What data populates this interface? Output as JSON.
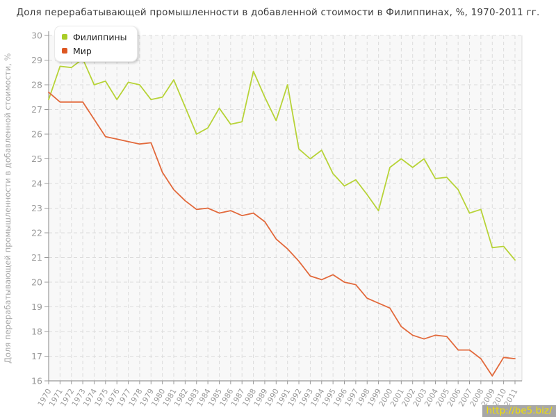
{
  "title": "Доля перерабатывающей промышленности в добавленной стоимости в Филиппинах, %, 1970-2011 гг.",
  "y_axis_title": "Доля перерабатывающей промышленности в добавленной стоимости, %",
  "watermark": "http://be5.biz/",
  "legend": {
    "position": "top-left",
    "items": [
      {
        "label": "Филиппины",
        "color": "#a9cd28"
      },
      {
        "label": "Мир",
        "color": "#dd5722"
      }
    ]
  },
  "colors": {
    "plot_background": "#f8f8f8",
    "grid": "#dcdcdc",
    "axis": "#999999",
    "tick_label": "#9a9a9a",
    "title_text": "#3c3c3c",
    "watermark_bg": "#a7a7a7",
    "watermark_text": "#f2e000"
  },
  "chart_data": {
    "type": "line",
    "title": "Доля перерабатывающей промышленности в добавленной стоимости в Филиппинах, %, 1970-2011 гг.",
    "xlabel": "",
    "ylabel": "Доля перерабатывающей промышленности в добавленной стоимости, %",
    "ylim": [
      16,
      30
    ],
    "yticks": [
      16,
      17,
      18,
      19,
      20,
      21,
      22,
      23,
      24,
      25,
      26,
      27,
      28,
      29,
      30
    ],
    "grid": true,
    "grid_style": "dashed",
    "legend_position": "top-left",
    "x": [
      1970,
      1971,
      1972,
      1973,
      1974,
      1975,
      1976,
      1977,
      1978,
      1979,
      1980,
      1981,
      1982,
      1983,
      1984,
      1985,
      1986,
      1987,
      1988,
      1989,
      1990,
      1991,
      1992,
      1993,
      1994,
      1995,
      1996,
      1997,
      1998,
      1999,
      2000,
      2001,
      2002,
      2003,
      2004,
      2005,
      2006,
      2007,
      2008,
      2009,
      2010,
      2011
    ],
    "series": [
      {
        "name": "Филиппины",
        "color": "#b7d337",
        "values": [
          27.4,
          28.75,
          28.7,
          29.05,
          28.0,
          28.15,
          27.4,
          28.1,
          28.0,
          27.4,
          27.5,
          28.2,
          27.1,
          26.0,
          26.25,
          27.05,
          26.4,
          26.5,
          28.55,
          27.5,
          26.55,
          28.0,
          25.4,
          25.0,
          25.35,
          24.4,
          23.9,
          24.15,
          23.55,
          22.9,
          24.65,
          25.0,
          24.65,
          25.0,
          24.2,
          24.25,
          23.75,
          22.8,
          22.95,
          21.4,
          21.45,
          20.9
        ]
      },
      {
        "name": "Мир",
        "color": "#e2693b",
        "values": [
          27.7,
          27.3,
          27.3,
          27.3,
          26.6,
          25.9,
          25.8,
          25.7,
          25.6,
          25.65,
          24.45,
          23.75,
          23.3,
          22.95,
          23.0,
          22.8,
          22.9,
          22.7,
          22.8,
          22.45,
          21.75,
          21.35,
          20.85,
          20.25,
          20.1,
          20.3,
          20.0,
          19.9,
          19.35,
          19.15,
          18.95,
          18.2,
          17.85,
          17.7,
          17.85,
          17.8,
          17.25,
          17.25,
          16.9,
          16.2,
          16.95,
          16.9
        ]
      }
    ]
  }
}
